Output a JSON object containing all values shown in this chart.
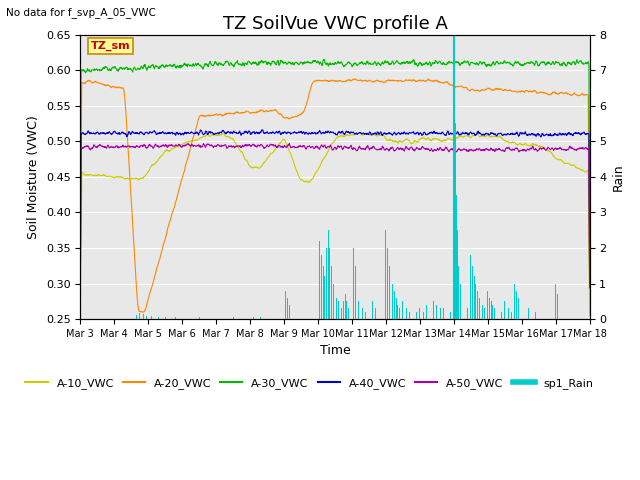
{
  "title": "TZ SoilVue VWC profile A",
  "no_data_label": "No data for f_svp_A_05_VWC",
  "tz_sm_label": "TZ_sm",
  "xlabel": "Time",
  "ylabel_left": "Soil Moisture (VWC)",
  "ylabel_right": "Rain",
  "ylim_left": [
    0.25,
    0.65
  ],
  "ylim_right": [
    0.0,
    8.0
  ],
  "yticks_left": [
    0.25,
    0.3,
    0.35,
    0.4,
    0.45,
    0.5,
    0.55,
    0.6,
    0.65
  ],
  "yticks_right": [
    0.0,
    1.0,
    2.0,
    3.0,
    4.0,
    5.0,
    6.0,
    7.0,
    8.0
  ],
  "xtick_labels": [
    "Mar 3",
    "Mar 4",
    "Mar 5",
    "Mar 6",
    "Mar 7",
    "Mar 8",
    "Mar 9",
    "Mar 10",
    "Mar 11",
    "Mar 12",
    "Mar 13",
    "Mar 14",
    "Mar 15",
    "Mar 16",
    "Mar 17",
    "Mar 18"
  ],
  "colors": {
    "A10": "#cccc00",
    "A20": "#ff8800",
    "A30": "#00bb00",
    "A40": "#0000cc",
    "A50": "#aa00aa",
    "rain": "#00cccc",
    "tz_sm_bg": "#ffff99",
    "tz_sm_border": "#cc8800",
    "tz_sm_text": "#cc0000"
  },
  "legend_entries": [
    "A-10_VWC",
    "A-20_VWC",
    "A-30_VWC",
    "A-40_VWC",
    "A-50_VWC",
    "sp1_Rain"
  ],
  "facecolor": "#e8e8e8",
  "title_fontsize": 13,
  "axis_label_fontsize": 9,
  "tick_fontsize": 8
}
